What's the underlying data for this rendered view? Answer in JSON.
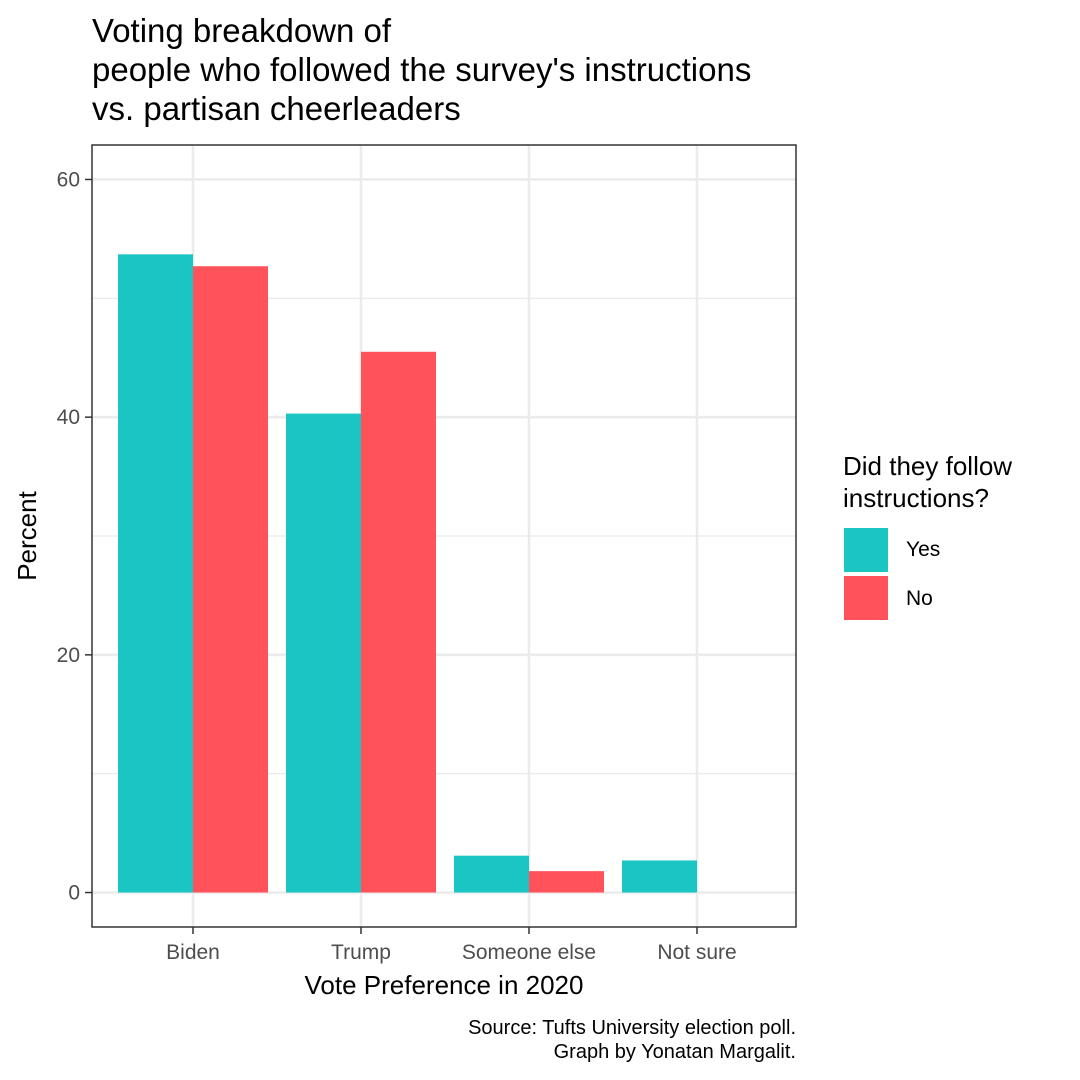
{
  "chart_data": {
    "type": "bar",
    "title_lines": [
      "Voting breakdown of",
      "people who followed the survey's instructions",
      "vs. partisan cheerleaders"
    ],
    "xlabel": "Vote Preference in 2020",
    "ylabel": "Percent",
    "categories": [
      "Biden",
      "Trump",
      "Someone else",
      "Not sure"
    ],
    "series": [
      {
        "name": "Yes",
        "color": "#1BC5C3",
        "values": [
          53.7,
          40.3,
          3.1,
          2.7
        ]
      },
      {
        "name": "No",
        "color": "#FF525A",
        "values": [
          52.7,
          45.5,
          1.8,
          0
        ]
      }
    ],
    "y_ticks": [
      0,
      20,
      40,
      60
    ],
    "ylim": [
      -2.9,
      62.9
    ],
    "grid": true,
    "legend": {
      "title_lines": [
        "Did they follow",
        "instructions?"
      ],
      "position": "right"
    },
    "caption_lines": [
      "Source: Tufts University election poll.",
      "Graph by Yonatan Margalit."
    ]
  }
}
